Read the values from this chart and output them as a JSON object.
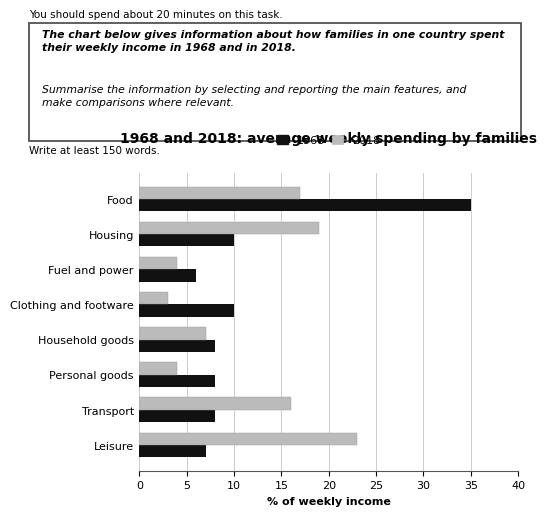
{
  "title": "1968 and 2018: average weekly spending by families",
  "categories": [
    "Food",
    "Housing",
    "Fuel and power",
    "Clothing and footware",
    "Household goods",
    "Personal goods",
    "Transport",
    "Leisure"
  ],
  "values_1968": [
    35,
    10,
    6,
    10,
    8,
    8,
    8,
    7
  ],
  "values_2018": [
    17,
    19,
    4,
    3,
    7,
    4,
    16,
    23
  ],
  "color_1968": "#111111",
  "color_2018": "#bbbbbb",
  "xlabel": "% of weekly income",
  "xlim": [
    0,
    40
  ],
  "xticks": [
    0,
    5,
    10,
    15,
    20,
    25,
    30,
    35,
    40
  ],
  "legend_labels": [
    "1968",
    "2018"
  ],
  "header_line1": "You should spend about 20 minutes on this task.",
  "prompt_bold": "The chart below gives information about how families in one country spent\ntheir weekly income in 1968 and in 2018.",
  "prompt_normal": "Summarise the information by selecting and reporting the main features, and\nmake comparisons where relevant.",
  "footer": "Write at least 150 words.",
  "bg_color": "#ffffff",
  "title_fontsize": 10,
  "label_fontsize": 8,
  "axis_fontsize": 8,
  "bar_height": 0.35,
  "grid_color": "#cccccc"
}
